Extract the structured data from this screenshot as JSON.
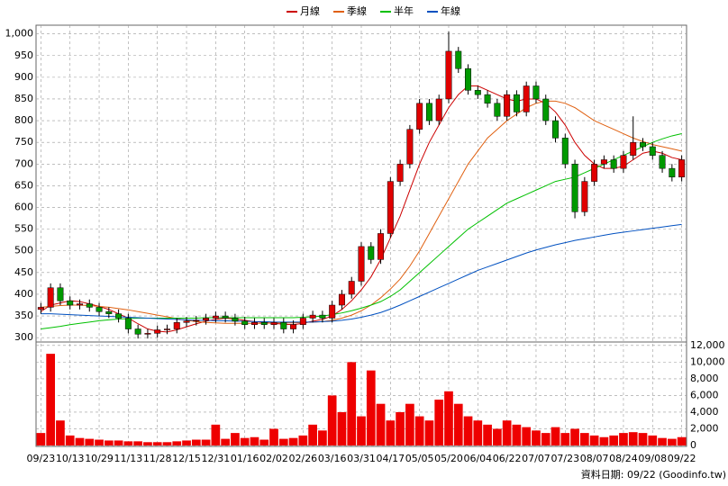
{
  "chart_data": {
    "type": "candlestick",
    "legend": {
      "position": "top"
    },
    "categories": [
      "09/23",
      null,
      null,
      "10/13",
      null,
      null,
      "10/29",
      null,
      null,
      "11/13",
      null,
      null,
      "11/28",
      null,
      null,
      "12/15",
      null,
      null,
      "12/31",
      null,
      null,
      "01/16",
      null,
      null,
      "02/02",
      null,
      null,
      "02/26",
      null,
      null,
      "03/16",
      null,
      null,
      "03/31",
      null,
      null,
      "04/17",
      null,
      null,
      "05/05",
      null,
      null,
      "05/20",
      null,
      null,
      "06/04",
      null,
      null,
      "06/22",
      null,
      null,
      "07/07",
      null,
      null,
      "07/23",
      null,
      null,
      "08/07",
      null,
      null,
      "08/24",
      null,
      null,
      "09/08",
      null,
      null,
      "09/22"
    ],
    "open": [
      365,
      370,
      415,
      385,
      375,
      378,
      370,
      360,
      355,
      345,
      320,
      308,
      310,
      318,
      320,
      335,
      338,
      340,
      345,
      350,
      345,
      338,
      330,
      335,
      330,
      335,
      320,
      330,
      345,
      352,
      345,
      375,
      400,
      430,
      510,
      480,
      540,
      660,
      700,
      780,
      840,
      800,
      850,
      960,
      920,
      870,
      860,
      840,
      810,
      860,
      820,
      880,
      850,
      800,
      760,
      700,
      590,
      660,
      700,
      710,
      690,
      720,
      750,
      740,
      720,
      690,
      670
    ],
    "high": [
      380,
      425,
      425,
      395,
      388,
      388,
      380,
      370,
      365,
      355,
      330,
      320,
      328,
      330,
      345,
      348,
      350,
      355,
      360,
      360,
      355,
      348,
      345,
      345,
      345,
      345,
      340,
      355,
      362,
      362,
      385,
      410,
      440,
      520,
      520,
      550,
      670,
      710,
      790,
      850,
      850,
      860,
      1005,
      970,
      930,
      880,
      870,
      850,
      870,
      870,
      890,
      890,
      860,
      810,
      770,
      710,
      670,
      710,
      720,
      720,
      730,
      810,
      760,
      750,
      730,
      700,
      720
    ],
    "low": [
      355,
      360,
      375,
      365,
      365,
      360,
      350,
      345,
      335,
      310,
      298,
      298,
      300,
      308,
      310,
      325,
      328,
      330,
      335,
      335,
      328,
      320,
      320,
      320,
      320,
      310,
      310,
      320,
      335,
      335,
      335,
      365,
      390,
      420,
      470,
      470,
      530,
      650,
      690,
      770,
      790,
      790,
      840,
      910,
      860,
      850,
      830,
      800,
      800,
      810,
      810,
      840,
      790,
      750,
      690,
      575,
      580,
      650,
      690,
      680,
      680,
      710,
      730,
      710,
      680,
      660,
      660
    ],
    "close": [
      370,
      415,
      385,
      375,
      378,
      370,
      360,
      355,
      345,
      320,
      308,
      310,
      318,
      320,
      335,
      338,
      340,
      345,
      350,
      345,
      338,
      330,
      335,
      330,
      335,
      320,
      330,
      345,
      352,
      345,
      375,
      400,
      430,
      510,
      480,
      540,
      660,
      700,
      780,
      840,
      800,
      850,
      960,
      920,
      870,
      860,
      840,
      810,
      860,
      820,
      880,
      850,
      800,
      760,
      700,
      590,
      660,
      700,
      710,
      690,
      720,
      750,
      740,
      720,
      690,
      670,
      710
    ],
    "up_color": "#e00000",
    "down_color": "#009900",
    "series": [
      {
        "name": "月線",
        "color": "#cc0000",
        "values": [
          360,
          375,
          380,
          385,
          383,
          378,
          372,
          365,
          355,
          345,
          332,
          320,
          315,
          313,
          318,
          325,
          332,
          338,
          342,
          345,
          343,
          340,
          337,
          335,
          333,
          331,
          330,
          333,
          338,
          342,
          350,
          365,
          385,
          410,
          440,
          480,
          530,
          580,
          640,
          700,
          750,
          790,
          830,
          860,
          880,
          880,
          870,
          860,
          850,
          845,
          850,
          850,
          840,
          820,
          790,
          750,
          720,
          700,
          690,
          690,
          695,
          710,
          725,
          730,
          725,
          715,
          710
        ]
      },
      {
        "name": "季線",
        "color": "#e06010",
        "values": [
          370,
          372,
          374,
          375,
          375,
          374,
          372,
          370,
          367,
          364,
          360,
          356,
          352,
          348,
          344,
          340,
          337,
          335,
          334,
          333,
          333,
          333,
          333,
          333,
          334,
          334,
          334,
          335,
          336,
          337,
          340,
          345,
          352,
          362,
          375,
          392,
          412,
          435,
          465,
          500,
          540,
          580,
          620,
          660,
          700,
          730,
          760,
          780,
          800,
          815,
          830,
          840,
          845,
          845,
          840,
          830,
          815,
          800,
          790,
          780,
          770,
          760,
          752,
          745,
          740,
          735,
          730
        ]
      },
      {
        "name": "半年",
        "color": "#00c000",
        "values": [
          320,
          323,
          326,
          330,
          333,
          336,
          339,
          341,
          343,
          344,
          345,
          345,
          345,
          345,
          345,
          345,
          345,
          346,
          346,
          346,
          346,
          346,
          346,
          346,
          346,
          346,
          346,
          347,
          348,
          350,
          353,
          357,
          362,
          368,
          375,
          383,
          395,
          410,
          430,
          450,
          470,
          490,
          510,
          530,
          550,
          565,
          580,
          595,
          610,
          620,
          630,
          640,
          650,
          660,
          665,
          670,
          680,
          690,
          700,
          710,
          720,
          730,
          740,
          750,
          758,
          765,
          770
        ]
      },
      {
        "name": "年線",
        "color": "#0050c0",
        "values": [
          355,
          355,
          354,
          353,
          352,
          351,
          350,
          349,
          348,
          347,
          346,
          345,
          344,
          343,
          342,
          341,
          340,
          340,
          339,
          339,
          338,
          338,
          337,
          337,
          336,
          336,
          336,
          336,
          336,
          337,
          338,
          340,
          343,
          347,
          352,
          358,
          366,
          375,
          385,
          395,
          405,
          415,
          425,
          435,
          445,
          455,
          463,
          471,
          479,
          487,
          495,
          502,
          508,
          514,
          519,
          524,
          528,
          532,
          536,
          540,
          543,
          546,
          549,
          552,
          555,
          558,
          561
        ]
      }
    ],
    "ylim": [
      290,
      1020
    ],
    "yticks": [
      300,
      350,
      400,
      450,
      500,
      550,
      600,
      650,
      700,
      750,
      800,
      850,
      900,
      950,
      {
        "value": 1000,
        "label": "1,000"
      }
    ],
    "volume": {
      "color": "#ee0000",
      "values": [
        1500,
        11000,
        3000,
        1200,
        900,
        800,
        700,
        600,
        600,
        500,
        500,
        400,
        400,
        400,
        500,
        600,
        700,
        700,
        2500,
        800,
        1500,
        900,
        1000,
        700,
        2000,
        800,
        900,
        1200,
        2500,
        1800,
        6000,
        4000,
        10000,
        3500,
        9000,
        5000,
        3000,
        4000,
        5000,
        3500,
        3000,
        5500,
        6500,
        5000,
        3500,
        3000,
        2500,
        2000,
        3000,
        2500,
        2200,
        1800,
        1500,
        2200,
        1500,
        2000,
        1500,
        1200,
        1000,
        1200,
        1500,
        1600,
        1500,
        1200,
        900,
        800,
        1000
      ],
      "ylim": [
        0,
        12200
      ],
      "yticks": [
        0,
        {
          "value": 2000,
          "label": "2,000"
        },
        {
          "value": 4000,
          "label": "4,000"
        },
        {
          "value": 6000,
          "label": "6,000"
        },
        {
          "value": 8000,
          "label": "8,000"
        },
        {
          "value": 10000,
          "label": "10,000"
        },
        {
          "value": 12000,
          "label": "12,000"
        }
      ]
    },
    "grid": true,
    "footnote": "資料日期: 09/22 (Goodinfo.tw)"
  }
}
